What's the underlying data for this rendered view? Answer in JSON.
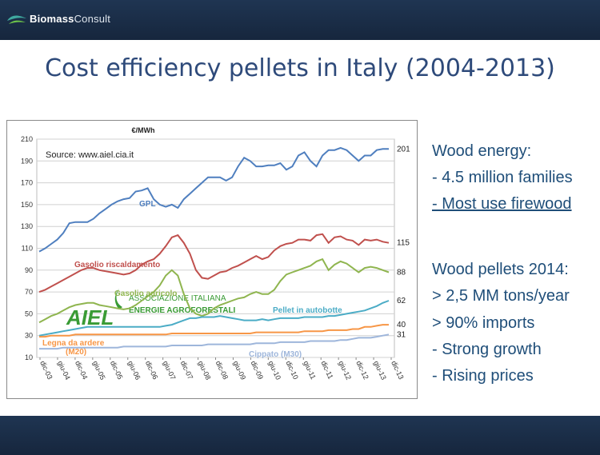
{
  "header": {
    "logo_bold": "Biomass",
    "logo_light": "Consult"
  },
  "title": "Cost efficiency pellets in Italy (2004-2013)",
  "right_panel": {
    "lines": [
      "Wood energy:",
      "- 4.5 million families",
      "- Most use firewood",
      "Wood pellets 2014:",
      "> 2,5 MM tons/year",
      "> 90% imports",
      "- Strong growth",
      "- Rising prices"
    ]
  },
  "colors": {
    "GPL": "#4f7fbf",
    "Gasolio riscaldamento": "#c0504d",
    "Gasolio agricolo": "#8fb54f",
    "Pellet in autobotte": "#4bacc6",
    "Legna da ardere (M20)": "#f79646",
    "Cippato (M30)": "#9eb6db",
    "logo_green": "#3a9b35"
  },
  "chart_data": {
    "type": "line",
    "unit_label": "€/MWh",
    "source": "Source: www.aiel.cia.it",
    "ylim": [
      10,
      210
    ],
    "yticks": [
      10,
      30,
      50,
      70,
      90,
      110,
      130,
      150,
      170,
      190,
      210
    ],
    "x_ticks": [
      "dic-03",
      "giu-04",
      "dic-04",
      "giu-05",
      "dic-05",
      "giu-06",
      "dic-06",
      "giu-07",
      "dic-07",
      "giu-08",
      "dic-08",
      "giu-09",
      "dic-09",
      "giu-10",
      "dic-10",
      "giu-11",
      "dic-11",
      "giu-12",
      "dic-12",
      "giu-13",
      "dic-13"
    ],
    "grid": true,
    "watermark": {
      "brand": "AIEL",
      "line1": "ASSOCIAZIONE ITALIANA",
      "line2": "ENERGIE AGROFORESTALI"
    },
    "series": [
      {
        "name": "GPL",
        "end_label": "201",
        "values": [
          107,
          110,
          114,
          118,
          124,
          133,
          134,
          134,
          134,
          137,
          142,
          146,
          150,
          153,
          155,
          156,
          162,
          163,
          165,
          155,
          150,
          148,
          150,
          147,
          155,
          160,
          165,
          170,
          175,
          175,
          175,
          172,
          175,
          185,
          193,
          190,
          185,
          185,
          186,
          186,
          188,
          182,
          185,
          195,
          198,
          190,
          185,
          195,
          200,
          200,
          202,
          200,
          195,
          190,
          195,
          195,
          200,
          201,
          201
        ]
      },
      {
        "name": "Gasolio riscaldamento",
        "end_label": "115",
        "values": [
          70,
          72,
          75,
          78,
          81,
          84,
          87,
          90,
          92,
          92,
          90,
          89,
          88,
          87,
          86,
          87,
          90,
          95,
          98,
          100,
          105,
          112,
          120,
          122,
          115,
          105,
          90,
          83,
          82,
          85,
          88,
          89,
          92,
          94,
          97,
          100,
          103,
          100,
          102,
          108,
          112,
          114,
          115,
          118,
          118,
          117,
          122,
          123,
          115,
          120,
          121,
          118,
          117,
          113,
          118,
          117,
          118,
          116,
          115
        ]
      },
      {
        "name": "Gasolio agricolo",
        "end_label": "88",
        "values": [
          42,
          45,
          48,
          50,
          53,
          56,
          58,
          59,
          60,
          60,
          58,
          57,
          56,
          55,
          54,
          55,
          58,
          62,
          66,
          70,
          76,
          85,
          90,
          85,
          68,
          55,
          50,
          48,
          50,
          55,
          58,
          60,
          62,
          64,
          65,
          68,
          70,
          68,
          68,
          72,
          80,
          86,
          88,
          90,
          92,
          94,
          98,
          100,
          90,
          95,
          98,
          96,
          92,
          88,
          92,
          93,
          92,
          90,
          88
        ]
      },
      {
        "name": "Pellet in autobotte",
        "end_label": "62",
        "values": [
          30,
          31,
          32,
          33,
          34,
          35,
          36,
          37,
          38,
          38,
          38,
          38,
          38,
          38,
          38,
          38,
          38,
          38,
          38,
          38,
          38,
          39,
          40,
          42,
          44,
          46,
          46,
          47,
          47,
          47,
          48,
          47,
          46,
          45,
          44,
          44,
          44,
          45,
          44,
          45,
          46,
          46,
          46,
          46,
          47,
          47,
          47,
          47,
          48,
          48,
          49,
          50,
          51,
          52,
          53,
          55,
          57,
          60,
          62
        ]
      },
      {
        "name": "Legna da ardere (M20)",
        "end_label": "40",
        "values": [
          29,
          29,
          30,
          30,
          30,
          30,
          31,
          31,
          31,
          31,
          31,
          31,
          31,
          31,
          31,
          31,
          31,
          31,
          31,
          31,
          31,
          31,
          32,
          32,
          32,
          32,
          32,
          32,
          32,
          32,
          32,
          32,
          32,
          32,
          32,
          32,
          33,
          33,
          33,
          33,
          33,
          33,
          33,
          33,
          34,
          34,
          34,
          34,
          35,
          35,
          35,
          35,
          36,
          36,
          38,
          38,
          39,
          40,
          40
        ]
      },
      {
        "name": "Cippato (M30)",
        "end_label": "31",
        "values": [
          18,
          18,
          18,
          18,
          19,
          19,
          19,
          19,
          19,
          19,
          19,
          19,
          19,
          19,
          20,
          20,
          20,
          20,
          20,
          20,
          20,
          20,
          21,
          21,
          21,
          21,
          21,
          21,
          22,
          22,
          22,
          22,
          22,
          22,
          22,
          22,
          23,
          23,
          23,
          23,
          24,
          24,
          24,
          24,
          24,
          25,
          25,
          25,
          25,
          25,
          26,
          26,
          27,
          28,
          28,
          28,
          29,
          30,
          31
        ]
      }
    ]
  }
}
